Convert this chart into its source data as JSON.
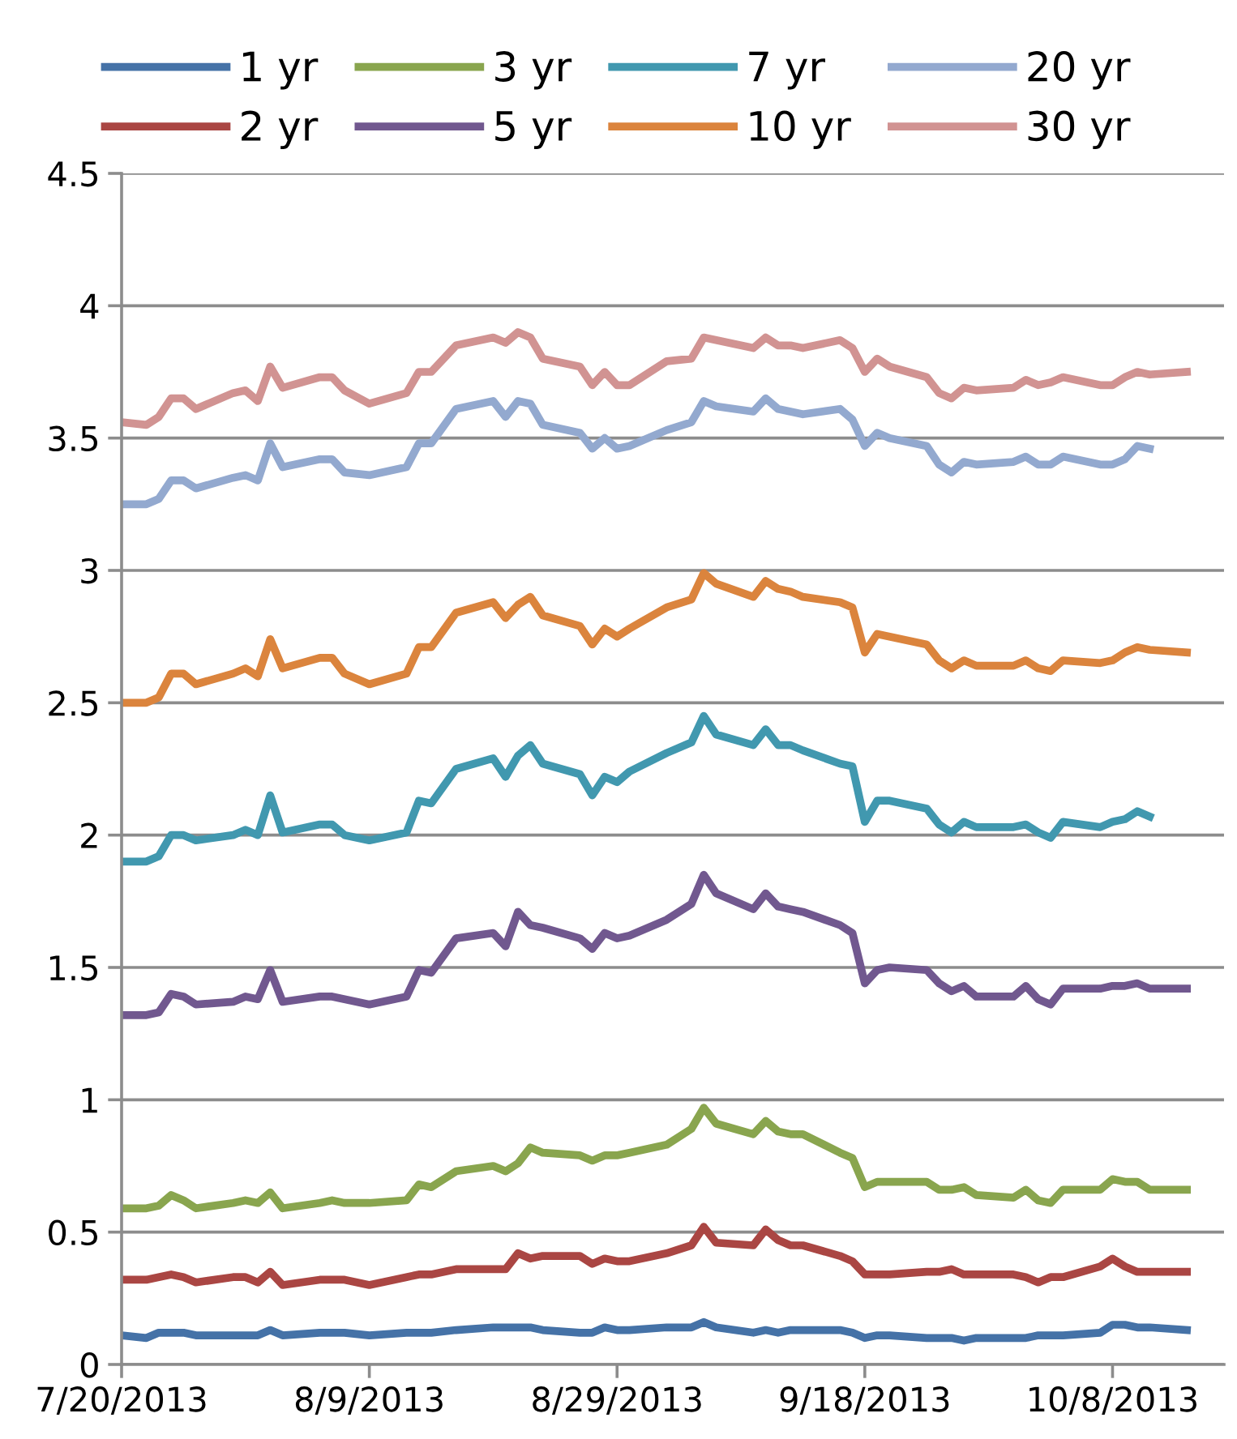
{
  "chart_data": {
    "type": "line",
    "x": [
      "2013-07-20",
      "2013-07-22",
      "2013-07-23",
      "2013-07-24",
      "2013-07-25",
      "2013-07-26",
      "2013-07-29",
      "2013-07-30",
      "2013-07-31",
      "2013-08-01",
      "2013-08-02",
      "2013-08-05",
      "2013-08-06",
      "2013-08-07",
      "2013-08-09",
      "2013-08-12",
      "2013-08-13",
      "2013-08-14",
      "2013-08-16",
      "2013-08-19",
      "2013-08-20",
      "2013-08-21",
      "2013-08-22",
      "2013-08-23",
      "2013-08-26",
      "2013-08-27",
      "2013-08-28",
      "2013-08-29",
      "2013-08-30",
      "2013-09-02",
      "2013-09-04",
      "2013-09-05",
      "2013-09-06",
      "2013-09-09",
      "2013-09-10",
      "2013-09-11",
      "2013-09-12",
      "2013-09-13",
      "2013-09-16",
      "2013-09-17",
      "2013-09-18",
      "2013-09-19",
      "2013-09-20",
      "2013-09-23",
      "2013-09-24",
      "2013-09-25",
      "2013-09-26",
      "2013-09-27",
      "2013-09-30",
      "2013-10-01",
      "2013-10-02",
      "2013-10-03",
      "2013-10-04",
      "2013-10-07",
      "2013-10-08",
      "2013-10-09",
      "2013-10-10",
      "2013-10-11",
      "2013-10-14"
    ],
    "series": [
      {
        "name": "1 yr",
        "color": "#4572a7",
        "values": [
          0.11,
          0.1,
          0.12,
          0.12,
          0.12,
          0.11,
          0.11,
          0.11,
          0.11,
          0.13,
          0.11,
          0.12,
          0.12,
          0.12,
          0.11,
          0.12,
          0.12,
          0.12,
          0.13,
          0.14,
          0.14,
          0.14,
          0.14,
          0.13,
          0.12,
          0.12,
          0.14,
          0.13,
          0.13,
          0.14,
          0.14,
          0.16,
          0.14,
          0.12,
          0.13,
          0.12,
          0.13,
          0.13,
          0.13,
          0.12,
          0.1,
          0.11,
          0.11,
          0.1,
          0.1,
          0.1,
          0.09,
          0.1,
          0.1,
          0.1,
          0.11,
          0.11,
          0.11,
          0.12,
          0.15,
          0.15,
          0.14,
          0.14,
          0.13
        ]
      },
      {
        "name": "2 yr",
        "color": "#aa4643",
        "values": [
          0.32,
          0.32,
          0.33,
          0.34,
          0.33,
          0.31,
          0.33,
          0.33,
          0.31,
          0.35,
          0.3,
          0.32,
          0.32,
          0.32,
          0.3,
          0.33,
          0.34,
          0.34,
          0.36,
          0.36,
          0.36,
          0.42,
          0.4,
          0.41,
          0.41,
          0.38,
          0.4,
          0.39,
          0.39,
          0.42,
          0.45,
          0.52,
          0.46,
          0.45,
          0.51,
          0.47,
          0.45,
          0.45,
          0.41,
          0.39,
          0.34,
          0.34,
          0.34,
          0.35,
          0.35,
          0.36,
          0.34,
          0.34,
          0.34,
          0.33,
          0.31,
          0.33,
          0.33,
          0.37,
          0.4,
          0.37,
          0.35,
          0.35,
          0.35
        ]
      },
      {
        "name": "3 yr",
        "color": "#89a54e",
        "values": [
          0.59,
          0.59,
          0.6,
          0.64,
          0.62,
          0.59,
          0.61,
          0.62,
          0.61,
          0.65,
          0.59,
          0.61,
          0.62,
          0.61,
          0.61,
          0.62,
          0.68,
          0.67,
          0.73,
          0.75,
          0.73,
          0.76,
          0.82,
          0.8,
          0.79,
          0.77,
          0.79,
          0.79,
          0.8,
          0.83,
          0.89,
          0.97,
          0.91,
          0.87,
          0.92,
          0.88,
          0.87,
          0.87,
          0.8,
          0.78,
          0.67,
          0.69,
          0.69,
          0.69,
          0.66,
          0.66,
          0.67,
          0.64,
          0.63,
          0.66,
          0.62,
          0.61,
          0.66,
          0.66,
          0.7,
          0.69,
          0.69,
          0.66,
          0.66
        ]
      },
      {
        "name": "5 yr",
        "color": "#71588f",
        "values": [
          1.32,
          1.32,
          1.33,
          1.4,
          1.39,
          1.36,
          1.37,
          1.39,
          1.38,
          1.49,
          1.37,
          1.39,
          1.39,
          1.38,
          1.36,
          1.39,
          1.49,
          1.48,
          1.61,
          1.63,
          1.58,
          1.71,
          1.66,
          1.65,
          1.61,
          1.57,
          1.63,
          1.61,
          1.62,
          1.68,
          1.74,
          1.85,
          1.78,
          1.72,
          1.78,
          1.73,
          1.72,
          1.71,
          1.66,
          1.63,
          1.44,
          1.49,
          1.5,
          1.49,
          1.44,
          1.41,
          1.43,
          1.39,
          1.39,
          1.43,
          1.38,
          1.36,
          1.42,
          1.42,
          1.43,
          1.43,
          1.44,
          1.42,
          1.42
        ]
      },
      {
        "name": "7 yr",
        "color": "#4198af",
        "values": [
          1.9,
          1.9,
          1.92,
          2.0,
          2.0,
          1.98,
          2.0,
          2.02,
          2.0,
          2.15,
          2.01,
          2.04,
          2.04,
          2.0,
          1.98,
          2.01,
          2.13,
          2.12,
          2.25,
          2.29,
          2.22,
          2.3,
          2.34,
          2.27,
          2.23,
          2.15,
          2.22,
          2.2,
          2.24,
          2.31,
          2.35,
          2.45,
          2.38,
          2.34,
          2.4,
          2.34,
          2.34,
          2.32,
          2.27,
          2.26,
          2.05,
          2.13,
          2.13,
          2.1,
          2.04,
          2.01,
          2.05,
          2.03,
          2.03,
          2.04,
          2.01,
          1.99,
          2.05,
          2.03,
          2.05,
          2.06,
          2.09,
          2.07,
          null
        ]
      },
      {
        "name": "10 yr",
        "color": "#db843d",
        "values": [
          2.5,
          2.5,
          2.52,
          2.61,
          2.61,
          2.57,
          2.61,
          2.63,
          2.6,
          2.74,
          2.63,
          2.67,
          2.67,
          2.61,
          2.57,
          2.61,
          2.71,
          2.71,
          2.84,
          2.88,
          2.82,
          2.87,
          2.9,
          2.83,
          2.79,
          2.72,
          2.78,
          2.75,
          2.78,
          2.86,
          2.89,
          2.99,
          2.95,
          2.9,
          2.96,
          2.93,
          2.92,
          2.9,
          2.88,
          2.86,
          2.69,
          2.76,
          2.75,
          2.72,
          2.66,
          2.63,
          2.66,
          2.64,
          2.64,
          2.66,
          2.63,
          2.62,
          2.66,
          2.65,
          2.66,
          2.69,
          2.71,
          2.7,
          2.69
        ]
      },
      {
        "name": "20 yr",
        "color": "#93a9cf",
        "values": [
          3.25,
          3.25,
          3.27,
          3.34,
          3.34,
          3.31,
          3.35,
          3.36,
          3.34,
          3.48,
          3.39,
          3.42,
          3.42,
          3.37,
          3.36,
          3.39,
          3.48,
          3.48,
          3.61,
          3.64,
          3.58,
          3.64,
          3.63,
          3.55,
          3.52,
          3.46,
          3.5,
          3.46,
          3.47,
          3.53,
          3.56,
          3.64,
          3.62,
          3.6,
          3.65,
          3.61,
          3.6,
          3.59,
          3.61,
          3.57,
          3.47,
          3.52,
          3.5,
          3.47,
          3.4,
          3.37,
          3.41,
          3.4,
          3.41,
          3.43,
          3.4,
          3.4,
          3.43,
          3.4,
          3.4,
          3.42,
          3.47,
          3.46,
          null
        ]
      },
      {
        "name": "30 yr",
        "color": "#d19392",
        "values": [
          3.56,
          3.55,
          3.58,
          3.65,
          3.65,
          3.61,
          3.67,
          3.68,
          3.64,
          3.77,
          3.69,
          3.73,
          3.73,
          3.68,
          3.63,
          3.67,
          3.75,
          3.75,
          3.85,
          3.88,
          3.86,
          3.9,
          3.88,
          3.8,
          3.77,
          3.7,
          3.75,
          3.7,
          3.7,
          3.79,
          3.8,
          3.88,
          3.87,
          3.84,
          3.88,
          3.85,
          3.85,
          3.84,
          3.87,
          3.84,
          3.75,
          3.8,
          3.77,
          3.73,
          3.67,
          3.65,
          3.69,
          3.68,
          3.69,
          3.72,
          3.7,
          3.71,
          3.73,
          3.7,
          3.7,
          3.73,
          3.75,
          3.74,
          3.75
        ]
      }
    ],
    "xlim": [
      "2013-07-20",
      "2013-10-17"
    ],
    "xticks": [
      {
        "value": "2013-07-20",
        "label": "7/20/2013"
      },
      {
        "value": "2013-08-09",
        "label": "8/9/2013"
      },
      {
        "value": "2013-08-29",
        "label": "8/29/2013"
      },
      {
        "value": "2013-09-18",
        "label": "9/18/2013"
      },
      {
        "value": "2013-10-08",
        "label": "10/8/2013"
      }
    ],
    "ylim": [
      0,
      4.5
    ],
    "yticks": [
      0,
      0.5,
      1,
      1.5,
      2,
      2.5,
      3,
      3.5,
      4,
      4.5
    ],
    "grid": "y",
    "legend": "top",
    "marker": "none",
    "line_style": "solid"
  }
}
